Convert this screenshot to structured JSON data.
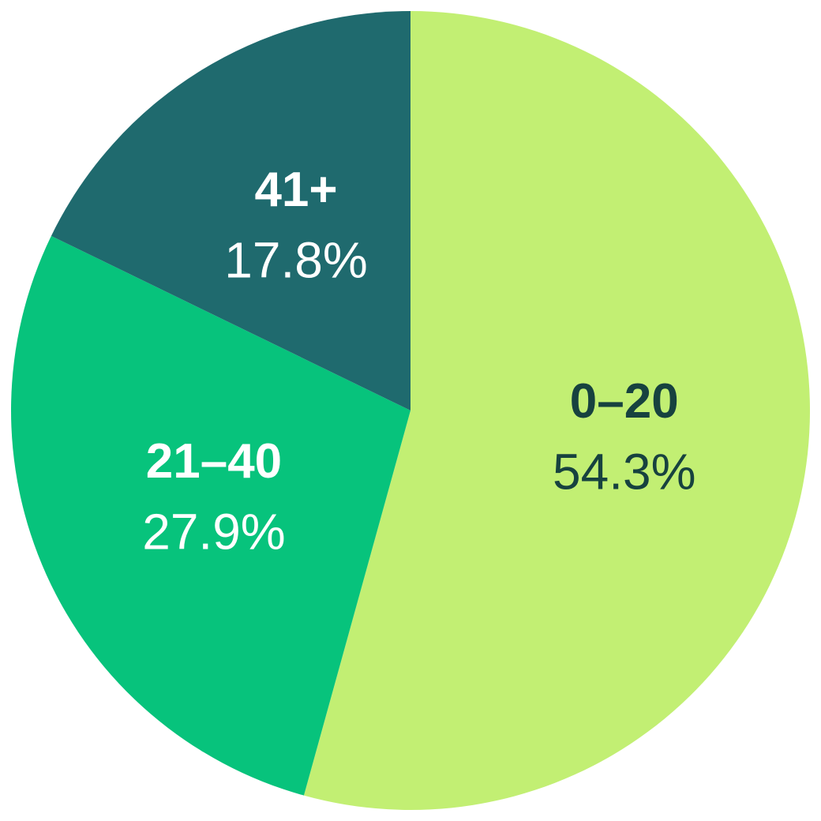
{
  "chart_data": {
    "type": "pie",
    "categories": [
      "0–20",
      "21–40",
      "41+"
    ],
    "values": [
      54.3,
      27.9,
      17.8
    ],
    "value_labels": [
      "54.3%",
      "27.9%",
      "17.8%"
    ],
    "colors": [
      "#c2ef73",
      "#07c37c",
      "#1f6a6e"
    ]
  }
}
